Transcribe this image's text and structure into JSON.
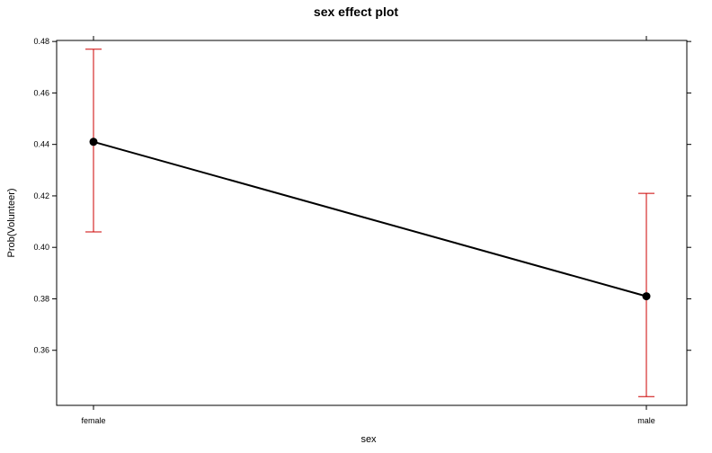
{
  "chart_data": {
    "type": "line",
    "title": "sex effect plot",
    "xlabel": "sex",
    "ylabel": "Prob(Volunteer)",
    "categories": [
      "female",
      "male"
    ],
    "series": [
      {
        "values": [
          0.441,
          0.381
        ],
        "lower": [
          0.406,
          0.342
        ],
        "upper": [
          0.477,
          0.421
        ]
      }
    ],
    "yticks": [
      0.36,
      0.38,
      0.4,
      0.42,
      0.44,
      0.46,
      0.48
    ],
    "ytick_labels": [
      "0.36",
      "0.38",
      "0.40",
      "0.42",
      "0.44",
      "0.46",
      "0.48"
    ],
    "ylim": [
      0.3386,
      0.4804
    ],
    "grid": false,
    "colors": {
      "line": "#000000",
      "point": "#000000",
      "errorbar": "#cc0000",
      "frame": "#000000"
    }
  }
}
